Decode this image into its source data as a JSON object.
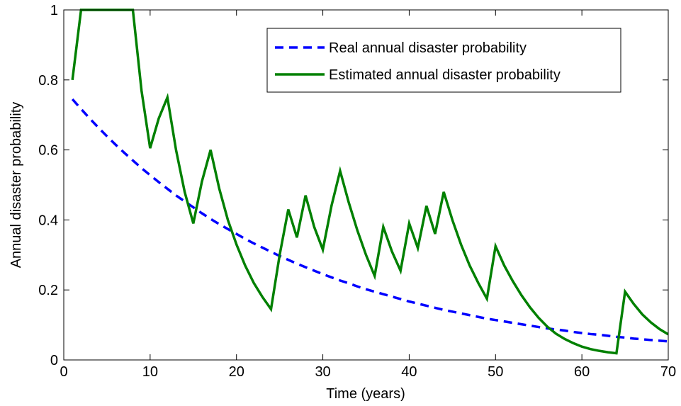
{
  "chart_data": {
    "type": "line",
    "title": "",
    "xlabel": "Time (years)",
    "ylabel": "Annual disaster probability",
    "xlim": [
      0,
      70
    ],
    "ylim": [
      0,
      1
    ],
    "xticks": [
      0,
      10,
      20,
      30,
      40,
      50,
      60,
      70
    ],
    "yticks": [
      0,
      0.2,
      0.4,
      0.6,
      0.8,
      1
    ],
    "grid": false,
    "legend_position": "top-right",
    "series": [
      {
        "name": "Real annual disaster probability",
        "style": "dashed",
        "color": "#0000ff",
        "x": [
          1,
          2,
          3,
          4,
          5,
          6,
          7,
          8,
          9,
          10,
          11,
          12,
          13,
          14,
          15,
          16,
          17,
          18,
          19,
          20,
          21,
          22,
          23,
          24,
          25,
          26,
          27,
          28,
          29,
          30,
          31,
          32,
          33,
          34,
          35,
          36,
          37,
          38,
          39,
          40,
          41,
          42,
          43,
          44,
          45,
          46,
          47,
          48,
          49,
          50,
          51,
          52,
          53,
          54,
          55,
          56,
          57,
          58,
          59,
          60,
          61,
          62,
          63,
          64,
          65,
          66,
          67,
          68,
          69,
          70
        ],
        "y": [
          0.745,
          0.717,
          0.69,
          0.664,
          0.639,
          0.615,
          0.592,
          0.57,
          0.548,
          0.528,
          0.508,
          0.489,
          0.47,
          0.453,
          0.436,
          0.419,
          0.403,
          0.388,
          0.374,
          0.36,
          0.346,
          0.333,
          0.321,
          0.309,
          0.297,
          0.286,
          0.275,
          0.265,
          0.255,
          0.245,
          0.236,
          0.227,
          0.219,
          0.21,
          0.202,
          0.195,
          0.188,
          0.181,
          0.174,
          0.167,
          0.161,
          0.155,
          0.149,
          0.143,
          0.138,
          0.133,
          0.128,
          0.123,
          0.118,
          0.114,
          0.11,
          0.106,
          0.102,
          0.098,
          0.094,
          0.09,
          0.087,
          0.084,
          0.08,
          0.077,
          0.074,
          0.072,
          0.069,
          0.066,
          0.064,
          0.061,
          0.059,
          0.057,
          0.055,
          0.053
        ]
      },
      {
        "name": "Estimated annual disaster probability",
        "style": "solid",
        "color": "#008000",
        "x": [
          1,
          2,
          3,
          4,
          5,
          6,
          7,
          8,
          9,
          10,
          11,
          12,
          13,
          14,
          15,
          16,
          17,
          18,
          19,
          20,
          21,
          22,
          23,
          24,
          25,
          26,
          27,
          28,
          29,
          30,
          31,
          32,
          33,
          34,
          35,
          36,
          37,
          38,
          39,
          40,
          41,
          42,
          43,
          44,
          45,
          46,
          47,
          48,
          49,
          50,
          51,
          52,
          53,
          54,
          55,
          56,
          57,
          58,
          59,
          60,
          61,
          62,
          63,
          64,
          65,
          66,
          67,
          68,
          69,
          70
        ],
        "y": [
          0.8,
          1.0,
          1.0,
          1.0,
          1.0,
          1.0,
          1.0,
          1.0,
          0.77,
          0.605,
          0.69,
          0.75,
          0.6,
          0.48,
          0.39,
          0.51,
          0.6,
          0.49,
          0.4,
          0.33,
          0.27,
          0.22,
          0.18,
          0.145,
          0.3,
          0.43,
          0.35,
          0.47,
          0.38,
          0.315,
          0.44,
          0.54,
          0.45,
          0.37,
          0.3,
          0.24,
          0.38,
          0.31,
          0.255,
          0.39,
          0.32,
          0.44,
          0.36,
          0.48,
          0.4,
          0.33,
          0.27,
          0.22,
          0.175,
          0.325,
          0.27,
          0.225,
          0.185,
          0.15,
          0.12,
          0.095,
          0.075,
          0.06,
          0.048,
          0.038,
          0.031,
          0.026,
          0.022,
          0.019,
          0.195,
          0.16,
          0.13,
          0.107,
          0.088,
          0.073
        ]
      }
    ]
  }
}
